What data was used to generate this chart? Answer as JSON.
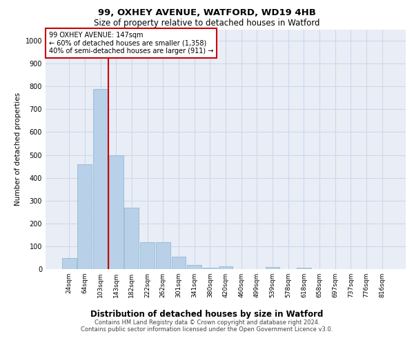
{
  "title1": "99, OXHEY AVENUE, WATFORD, WD19 4HB",
  "title2": "Size of property relative to detached houses in Watford",
  "xlabel": "Distribution of detached houses by size in Watford",
  "ylabel": "Number of detached properties",
  "footer1": "Contains HM Land Registry data © Crown copyright and database right 2024.",
  "footer2": "Contains public sector information licensed under the Open Government Licence v3.0.",
  "categories": [
    "24sqm",
    "64sqm",
    "103sqm",
    "143sqm",
    "182sqm",
    "222sqm",
    "262sqm",
    "301sqm",
    "341sqm",
    "380sqm",
    "420sqm",
    "460sqm",
    "499sqm",
    "539sqm",
    "578sqm",
    "618sqm",
    "658sqm",
    "697sqm",
    "737sqm",
    "776sqm",
    "816sqm"
  ],
  "values": [
    47,
    460,
    790,
    500,
    270,
    118,
    118,
    55,
    18,
    7,
    12,
    0,
    0,
    8,
    0,
    5,
    0,
    0,
    0,
    0,
    0
  ],
  "bar_color": "#b8d0e8",
  "bar_edge_color": "#8ab4cc",
  "annotation_text1": "99 OXHEY AVENUE: 147sqm",
  "annotation_text2": "← 60% of detached houses are smaller (1,358)",
  "annotation_text3": "40% of semi-detached houses are larger (911) →",
  "annotation_box_color": "#ffffff",
  "annotation_border_color": "#cc0000",
  "vline_color": "#cc0000",
  "vline_x": 2.5,
  "ylim": [
    0,
    1050
  ],
  "yticks": [
    0,
    100,
    200,
    300,
    400,
    500,
    600,
    700,
    800,
    900,
    1000
  ],
  "grid_color": "#ccd6e8",
  "bg_color": "#e8edf6",
  "title1_fontsize": 9.5,
  "title2_fontsize": 8.5,
  "ylabel_fontsize": 7.5,
  "xlabel_fontsize": 8.5,
  "tick_fontsize": 6.5,
  "ann_fontsize": 7.0,
  "footer_fontsize": 6.0
}
